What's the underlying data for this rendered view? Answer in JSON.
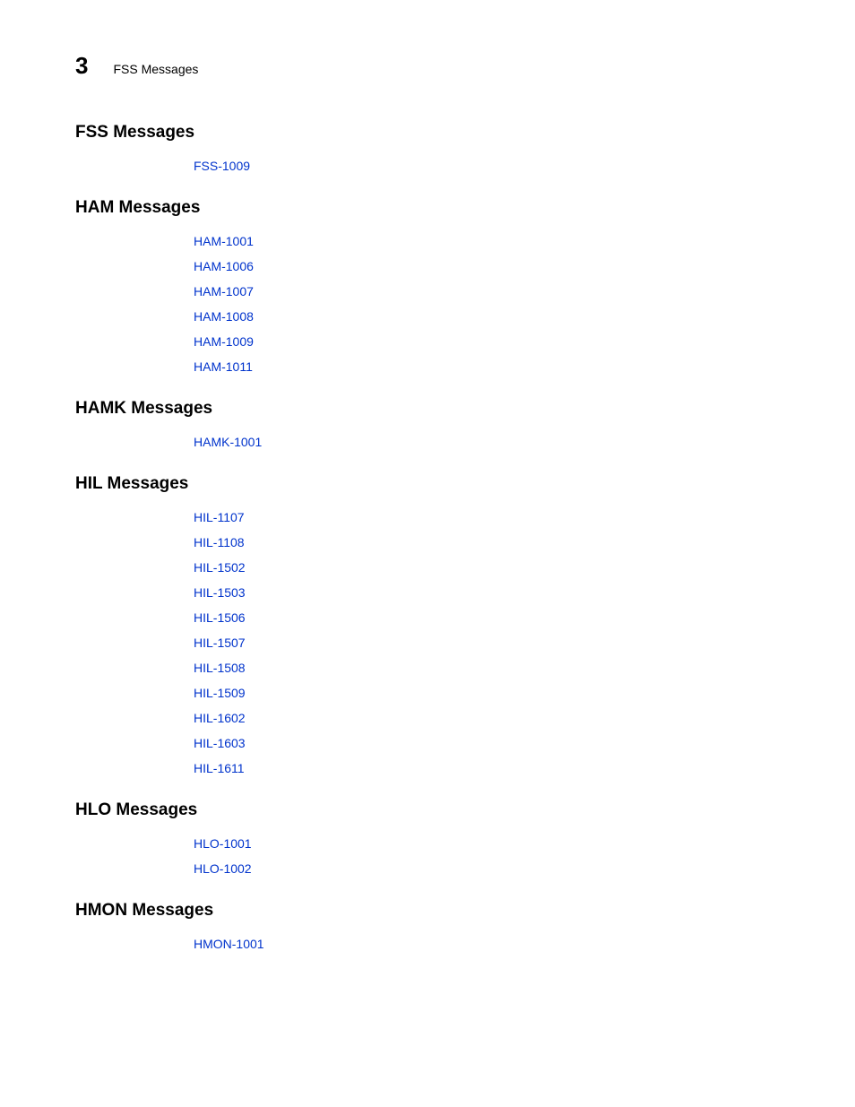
{
  "header": {
    "chapter_number": "3",
    "chapter_label": "FSS Messages"
  },
  "link_color": "#0033cc",
  "text_color": "#000000",
  "background_color": "#ffffff",
  "sections": [
    {
      "title": "FSS Messages",
      "links": [
        "FSS-1009"
      ]
    },
    {
      "title": "HAM Messages",
      "links": [
        "HAM-1001",
        "HAM-1006",
        "HAM-1007",
        "HAM-1008",
        "HAM-1009",
        "HAM-1011"
      ]
    },
    {
      "title": "HAMK Messages",
      "links": [
        "HAMK-1001"
      ]
    },
    {
      "title": "HIL Messages",
      "links": [
        "HIL-1107",
        "HIL-1108",
        "HIL-1502",
        "HIL-1503",
        "HIL-1506",
        "HIL-1507",
        "HIL-1508",
        "HIL-1509",
        "HIL-1602",
        "HIL-1603",
        "HIL-1611"
      ]
    },
    {
      "title": "HLO Messages",
      "links": [
        "HLO-1001",
        "HLO-1002"
      ]
    },
    {
      "title": "HMON Messages",
      "links": [
        "HMON-1001"
      ]
    }
  ]
}
